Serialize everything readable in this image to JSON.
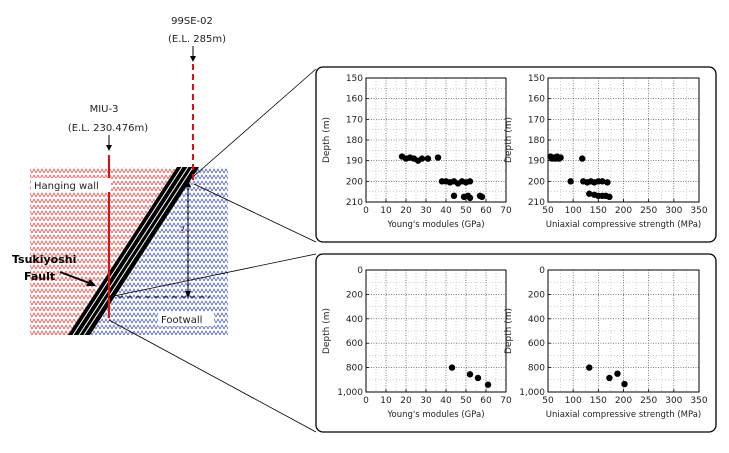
{
  "labels": {
    "borehole_a_name": "99SE-02",
    "borehole_a_el": "(E.L. 285m)",
    "borehole_b_name": "MIU-3",
    "borehole_b_el": "(E.L. 230.476m)",
    "hanging_wall": "Hanging wall",
    "footwall": "Footwall",
    "fault_line1": "Tsukiyoshi",
    "fault_line2": "Fault",
    "question": "?"
  },
  "colors": {
    "hanging_wall_pattern": "#e53935",
    "footwall_pattern": "#3949ab",
    "borehole": "#e01010",
    "fault": "#000000",
    "frame": "#000000"
  },
  "chart_data": [
    {
      "type": "scatter",
      "panel": "upper",
      "xlabel": "Young's modules (GPa)",
      "ylabel": "Depth (m)",
      "xlim": [
        0,
        70
      ],
      "ylim": [
        150,
        210
      ],
      "y_inverted": true,
      "xticks": [
        "0",
        "10",
        "20",
        "30",
        "40",
        "50",
        "60",
        "70"
      ],
      "yticks": [
        "150",
        "160",
        "170",
        "180",
        "190",
        "200",
        "210"
      ],
      "grid": true,
      "points": [
        {
          "x": 18,
          "y": 188
        },
        {
          "x": 20,
          "y": 189
        },
        {
          "x": 22,
          "y": 188.5
        },
        {
          "x": 24,
          "y": 189
        },
        {
          "x": 26,
          "y": 190
        },
        {
          "x": 28,
          "y": 189
        },
        {
          "x": 31,
          "y": 189
        },
        {
          "x": 36,
          "y": 188.5
        },
        {
          "x": 38,
          "y": 200
        },
        {
          "x": 40,
          "y": 200
        },
        {
          "x": 42,
          "y": 200.5
        },
        {
          "x": 44,
          "y": 200
        },
        {
          "x": 46,
          "y": 201
        },
        {
          "x": 48,
          "y": 200
        },
        {
          "x": 50,
          "y": 200.5
        },
        {
          "x": 52,
          "y": 200
        },
        {
          "x": 44,
          "y": 207
        },
        {
          "x": 49,
          "y": 207.5
        },
        {
          "x": 51,
          "y": 207
        },
        {
          "x": 52,
          "y": 208
        },
        {
          "x": 57,
          "y": 207
        },
        {
          "x": 58,
          "y": 207.5
        }
      ]
    },
    {
      "type": "scatter",
      "panel": "upper",
      "xlabel": "Uniaxial compressive strength (MPa)",
      "ylabel": "Depth (m)",
      "xlim": [
        50,
        350
      ],
      "ylim": [
        150,
        210
      ],
      "y_inverted": true,
      "xticks": [
        "50",
        "100",
        "150",
        "200",
        "250",
        "300",
        "350"
      ],
      "yticks": [
        "150",
        "160",
        "170",
        "180",
        "190",
        "200",
        "210"
      ],
      "grid": true,
      "points": [
        {
          "x": 55,
          "y": 188
        },
        {
          "x": 58,
          "y": 189
        },
        {
          "x": 62,
          "y": 188.5
        },
        {
          "x": 65,
          "y": 189
        },
        {
          "x": 68,
          "y": 188
        },
        {
          "x": 72,
          "y": 189
        },
        {
          "x": 75,
          "y": 188.5
        },
        {
          "x": 118,
          "y": 189
        },
        {
          "x": 95,
          "y": 200
        },
        {
          "x": 120,
          "y": 200
        },
        {
          "x": 128,
          "y": 200.5
        },
        {
          "x": 135,
          "y": 200
        },
        {
          "x": 142,
          "y": 200.5
        },
        {
          "x": 150,
          "y": 200
        },
        {
          "x": 158,
          "y": 200
        },
        {
          "x": 168,
          "y": 200.5
        },
        {
          "x": 132,
          "y": 206
        },
        {
          "x": 142,
          "y": 206.5
        },
        {
          "x": 150,
          "y": 207
        },
        {
          "x": 158,
          "y": 207
        },
        {
          "x": 165,
          "y": 207
        },
        {
          "x": 172,
          "y": 207.5
        }
      ]
    },
    {
      "type": "scatter",
      "panel": "lower",
      "xlabel": "Young's modules (GPa)",
      "ylabel": "Depth (m)",
      "xlim": [
        0,
        70
      ],
      "ylim": [
        0,
        1000
      ],
      "y_inverted": true,
      "xticks": [
        "0",
        "10",
        "20",
        "30",
        "40",
        "50",
        "60",
        "70"
      ],
      "yticks": [
        "0",
        "200",
        "400",
        "600",
        "800",
        "1,000"
      ],
      "grid": true,
      "points": [
        {
          "x": 43,
          "y": 800
        },
        {
          "x": 52,
          "y": 855
        },
        {
          "x": 56,
          "y": 885
        },
        {
          "x": 61,
          "y": 940
        }
      ]
    },
    {
      "type": "scatter",
      "panel": "lower",
      "xlabel": "Uniaxial compressive strength (MPa)",
      "ylabel": "Depth (m)",
      "xlim": [
        50,
        350
      ],
      "ylim": [
        0,
        1000
      ],
      "y_inverted": true,
      "xticks": [
        "50",
        "100",
        "150",
        "200",
        "250",
        "300",
        "350"
      ],
      "yticks": [
        "0",
        "200",
        "400",
        "600",
        "800",
        "1,000"
      ],
      "grid": true,
      "points": [
        {
          "x": 132,
          "y": 800
        },
        {
          "x": 172,
          "y": 885
        },
        {
          "x": 188,
          "y": 850
        },
        {
          "x": 202,
          "y": 935
        }
      ]
    }
  ]
}
